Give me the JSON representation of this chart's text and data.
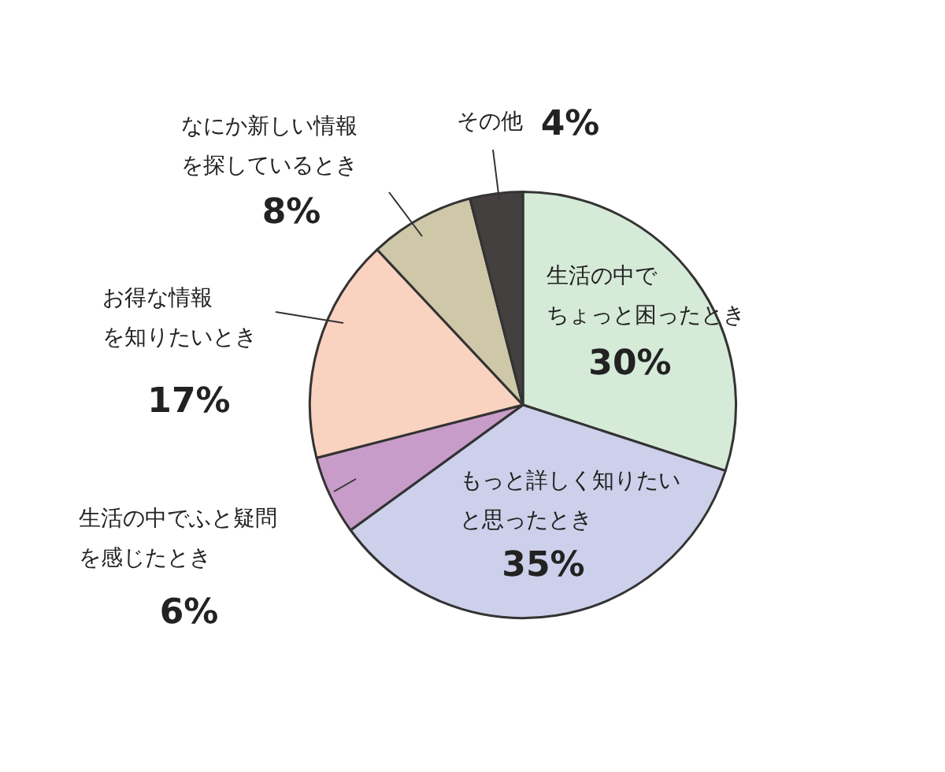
{
  "chart_data": {
    "type": "pie",
    "categories": [
      "生活の中でちょっと困ったとき",
      "もっと詳しく知りたいと思ったとき",
      "生活の中でふと疑問を感じたとき",
      "お得な情報を知りたいとき",
      "なにか新しい情報を探しているとき",
      "その他"
    ],
    "values": [
      30,
      35,
      6,
      17,
      8,
      4
    ],
    "value_labels": [
      "30%",
      "35%",
      "6%",
      "17%",
      "8%",
      "4%"
    ],
    "colors": [
      "#d5ead7",
      "#ccd0ea",
      "#c89cc8",
      "#f9d2c0",
      "#cec8a8",
      "#444040"
    ],
    "legend": false
  }
}
